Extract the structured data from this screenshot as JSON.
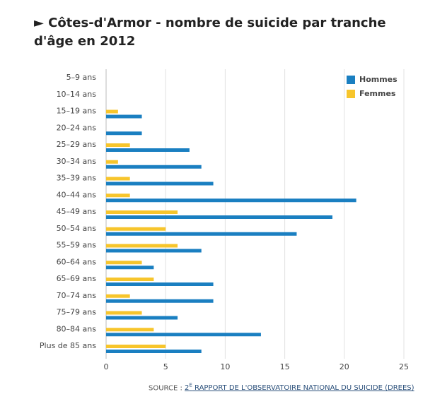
{
  "chart_data": {
    "type": "hbar",
    "title": "► Côtes-d'Armor - nombre de suicide par tranche d'âge en 2012",
    "categories": [
      "5–9 ans",
      "10–14 ans",
      "15–19 ans",
      "20–24 ans",
      "25–29 ans",
      "30–34 ans",
      "35–39 ans",
      "40–44 ans",
      "45–49 ans",
      "50–54 ans",
      "55–59 ans",
      "60–64 ans",
      "65–69 ans",
      "70–74 ans",
      "75–79 ans",
      "80–84 ans",
      "Plus de 85 ans"
    ],
    "series": [
      {
        "name": "Hommes",
        "color": "#1a7fc1",
        "values": [
          0,
          0,
          3,
          3,
          7,
          8,
          9,
          21,
          19,
          16,
          8,
          4,
          9,
          9,
          6,
          13,
          8
        ]
      },
      {
        "name": "Femmes",
        "color": "#f7c52c",
        "values": [
          0,
          0,
          1,
          0,
          2,
          1,
          2,
          2,
          6,
          5,
          6,
          3,
          4,
          2,
          3,
          4,
          5
        ]
      }
    ],
    "xlim": [
      0,
      25
    ],
    "xticks": [
      0,
      5,
      10,
      15,
      20,
      25
    ],
    "grid": true,
    "legend": "top-right",
    "source_label": "SOURCE :",
    "source_link": [
      "2",
      "E",
      " RAPPORT DE L'OBSERVATOIRE NATIONAL DU SUICIDE (DREES)"
    ]
  }
}
